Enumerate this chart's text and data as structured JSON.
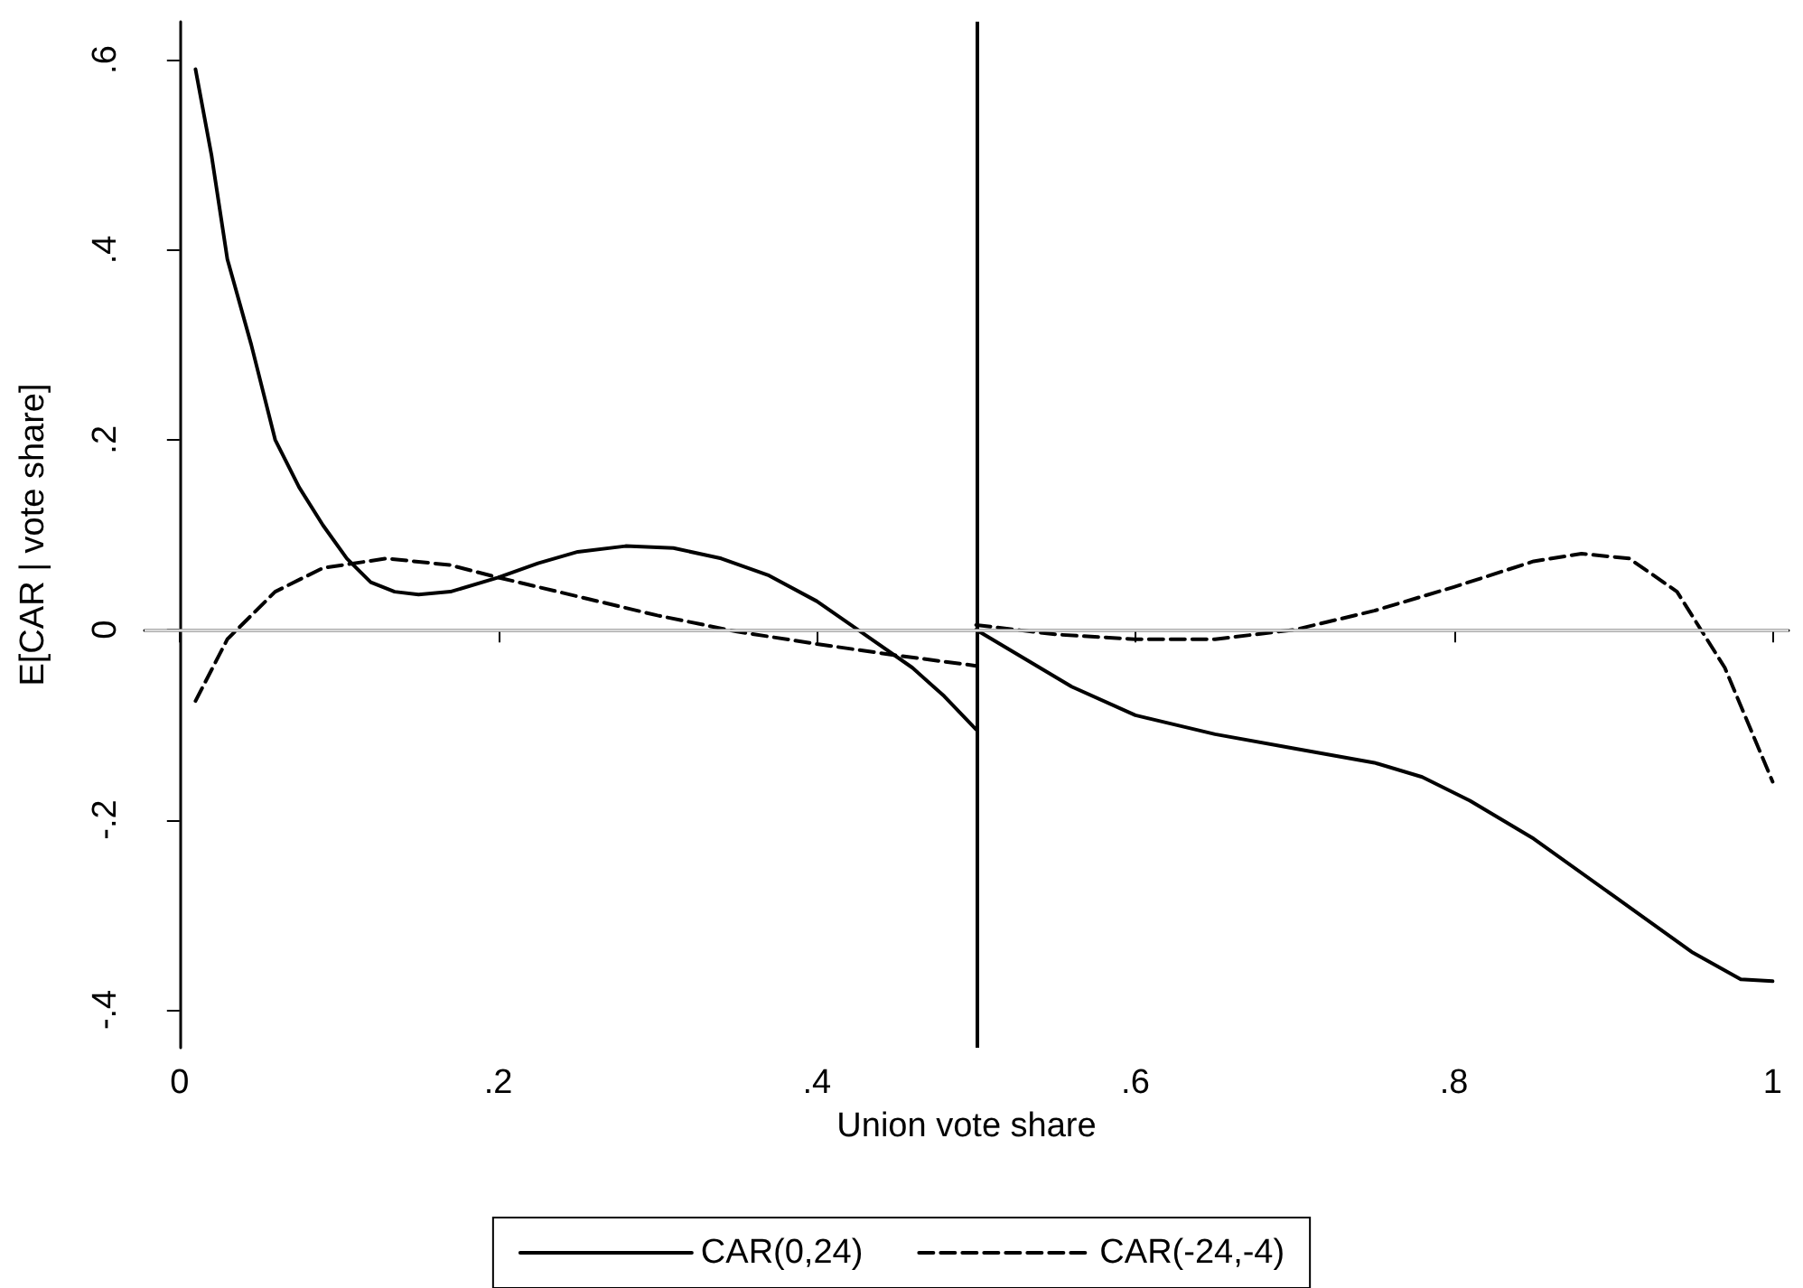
{
  "chart_data": {
    "type": "line",
    "xlabel": "Union vote share",
    "ylabel": "E[CAR | vote share]",
    "xlim": [
      -0.022,
      1.01
    ],
    "ylim": [
      -0.44,
      0.64
    ],
    "xticks": [
      0,
      {
        "value": 0.2,
        "label": ".2"
      },
      {
        "value": 0.4,
        "label": ".4"
      },
      {
        "value": 0.6,
        "label": ".6"
      },
      {
        "value": 0.8,
        "label": ".8"
      },
      1
    ],
    "yticks": [
      {
        "value": -0.4,
        "label": "-.4"
      },
      {
        "value": -0.2,
        "label": "-.2"
      },
      0,
      {
        "value": 0.2,
        "label": ".2"
      },
      {
        "value": 0.4,
        "label": ".4"
      },
      {
        "value": 0.6,
        "label": ".6"
      }
    ],
    "grid": false,
    "legend": "bottom",
    "marker": "none",
    "ref_lines": [
      {
        "axis": "x",
        "value": 0.5,
        "color": "#000000"
      },
      {
        "axis": "y",
        "value": 0,
        "color": "#d9d9d9"
      }
    ],
    "series": [
      {
        "name": "CAR(0,24)",
        "color": "#000000",
        "line_style": "solid",
        "x": [
          0.01,
          0.02,
          0.03,
          0.045,
          0.06,
          0.075,
          0.09,
          0.105,
          0.12,
          0.135,
          0.15,
          0.17,
          0.2,
          0.225,
          0.25,
          0.28,
          0.31,
          0.34,
          0.37,
          0.4,
          0.43,
          0.46,
          0.48,
          0.5,
          0.5,
          0.53,
          0.56,
          0.6,
          0.65,
          0.7,
          0.75,
          0.78,
          0.81,
          0.85,
          0.9,
          0.95,
          0.98,
          1.0
        ],
        "values": [
          0.59,
          0.5,
          0.39,
          0.3,
          0.2,
          0.15,
          0.11,
          0.075,
          0.05,
          0.04,
          0.037,
          0.04,
          0.055,
          0.07,
          0.082,
          0.088,
          0.086,
          0.075,
          0.057,
          0.03,
          -0.005,
          -0.04,
          -0.07,
          -0.105,
          0.0,
          -0.03,
          -0.06,
          -0.09,
          -0.11,
          -0.125,
          -0.14,
          -0.155,
          -0.18,
          -0.22,
          -0.28,
          -0.34,
          -0.368,
          -0.37
        ]
      },
      {
        "name": "CAR(-24,-4)",
        "color": "#000000",
        "line_style": "dashed",
        "x": [
          0.01,
          0.03,
          0.06,
          0.09,
          0.13,
          0.17,
          0.2,
          0.25,
          0.3,
          0.35,
          0.4,
          0.45,
          0.5,
          0.5,
          0.55,
          0.6,
          0.65,
          0.7,
          0.75,
          0.8,
          0.85,
          0.88,
          0.91,
          0.94,
          0.97,
          1.0
        ],
        "values": [
          -0.075,
          -0.01,
          0.04,
          0.065,
          0.075,
          0.068,
          0.055,
          0.035,
          0.015,
          -0.002,
          -0.015,
          -0.027,
          -0.038,
          0.005,
          -0.005,
          -0.01,
          -0.01,
          0.0,
          0.02,
          0.045,
          0.072,
          0.08,
          0.075,
          0.04,
          -0.04,
          -0.16
        ]
      }
    ]
  }
}
